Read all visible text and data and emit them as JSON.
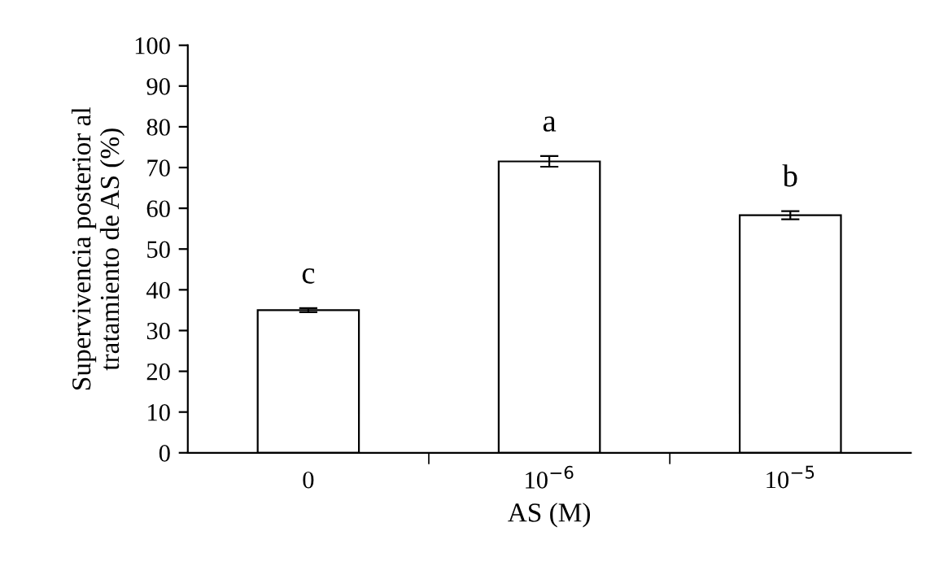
{
  "chart_data": {
    "type": "bar",
    "categories": [
      "0",
      "10$^{−6}$",
      "10$^{−5}$"
    ],
    "values": [
      35,
      71.5,
      58.3
    ],
    "errors": [
      0.5,
      1.3,
      1.0
    ],
    "color": "#ffffff",
    "xlabel": "AS (M)",
    "ylabel": "Supervivencia posterior al\ntratamiento de AS (%)",
    "ylim": [
      0,
      100
    ],
    "yticks": [
      0,
      10,
      20,
      30,
      40,
      50,
      60,
      70,
      80,
      90,
      100
    ],
    "grid": false,
    "annotations": [
      "c",
      "a",
      "b"
    ]
  }
}
